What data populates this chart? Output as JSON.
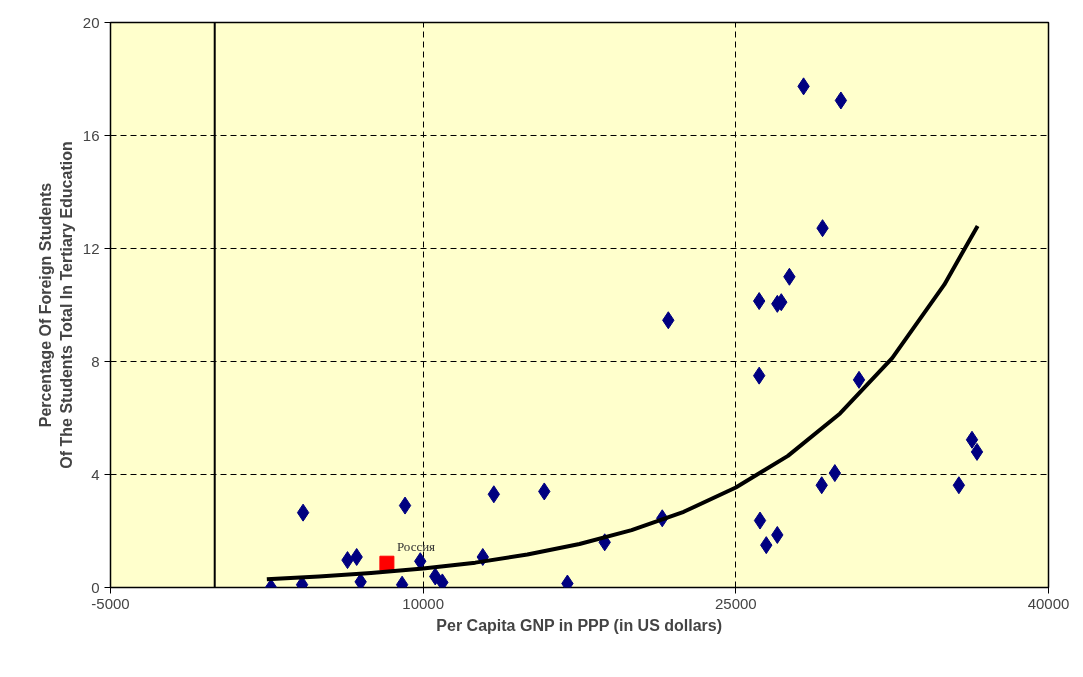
{
  "chart_data": {
    "type": "scatter",
    "xlabel": "Per Capita GNP in PPP (in US dollars)",
    "ylabel": "Percentage Of Foreign Students\nOf The Students Total In Tertiary Education",
    "xlim": [
      -5000,
      40000
    ],
    "xticks": [
      -5000,
      10000,
      25000,
      40000
    ],
    "ylim": [
      0,
      20
    ],
    "yticks": [
      0,
      4,
      8,
      12,
      16,
      20
    ],
    "grid": true,
    "ref_lines": [
      {
        "axis": "x",
        "value": 0,
        "color": "#000000",
        "line_style": "solid"
      }
    ],
    "series": [
      {
        "marker": "diamond",
        "color": "#000080",
        "x": [
          2700,
          4240,
          4190,
          6370,
          6810,
          7000,
          8990,
          9130,
          9860,
          10580,
          10920,
          12860,
          13390,
          15810,
          16920,
          18710,
          21470,
          21760,
          26120,
          26160,
          26120,
          26460,
          26990,
          26990,
          27180,
          27570,
          28250,
          29160,
          29120,
          29750,
          30040,
          30910,
          35700,
          36330,
          36570
        ],
        "values": [
          0.0,
          2.65,
          0.1,
          0.97,
          1.08,
          0.2,
          0.1,
          2.9,
          0.93,
          0.39,
          0.18,
          1.08,
          3.3,
          3.4,
          0.14,
          1.6,
          2.45,
          9.46,
          7.5,
          2.37,
          10.14,
          1.5,
          1.86,
          10.04,
          10.1,
          11.0,
          17.74,
          12.72,
          3.62,
          4.05,
          17.24,
          7.35,
          3.62,
          5.23,
          4.8
        ]
      },
      {
        "marker": "square",
        "color": "#ff0000",
        "x": [
          8260
        ],
        "values": [
          0.86
        ]
      },
      {
        "type": "line",
        "marker": "none",
        "line_style": "solid",
        "color": "#000000",
        "x": [
          2500,
          5000,
          7500,
          10000,
          12500,
          15000,
          17500,
          20000,
          22500,
          25000,
          27500,
          30000,
          32500,
          35000,
          36600
        ],
        "values": [
          0.29,
          0.39,
          0.51,
          0.67,
          0.88,
          1.17,
          1.54,
          2.03,
          2.68,
          3.54,
          4.66,
          6.16,
          8.12,
          10.72,
          12.8
        ]
      }
    ],
    "annotations": [
      {
        "text": "Россия",
        "x": 8260,
        "y": 0.86
      }
    ]
  }
}
